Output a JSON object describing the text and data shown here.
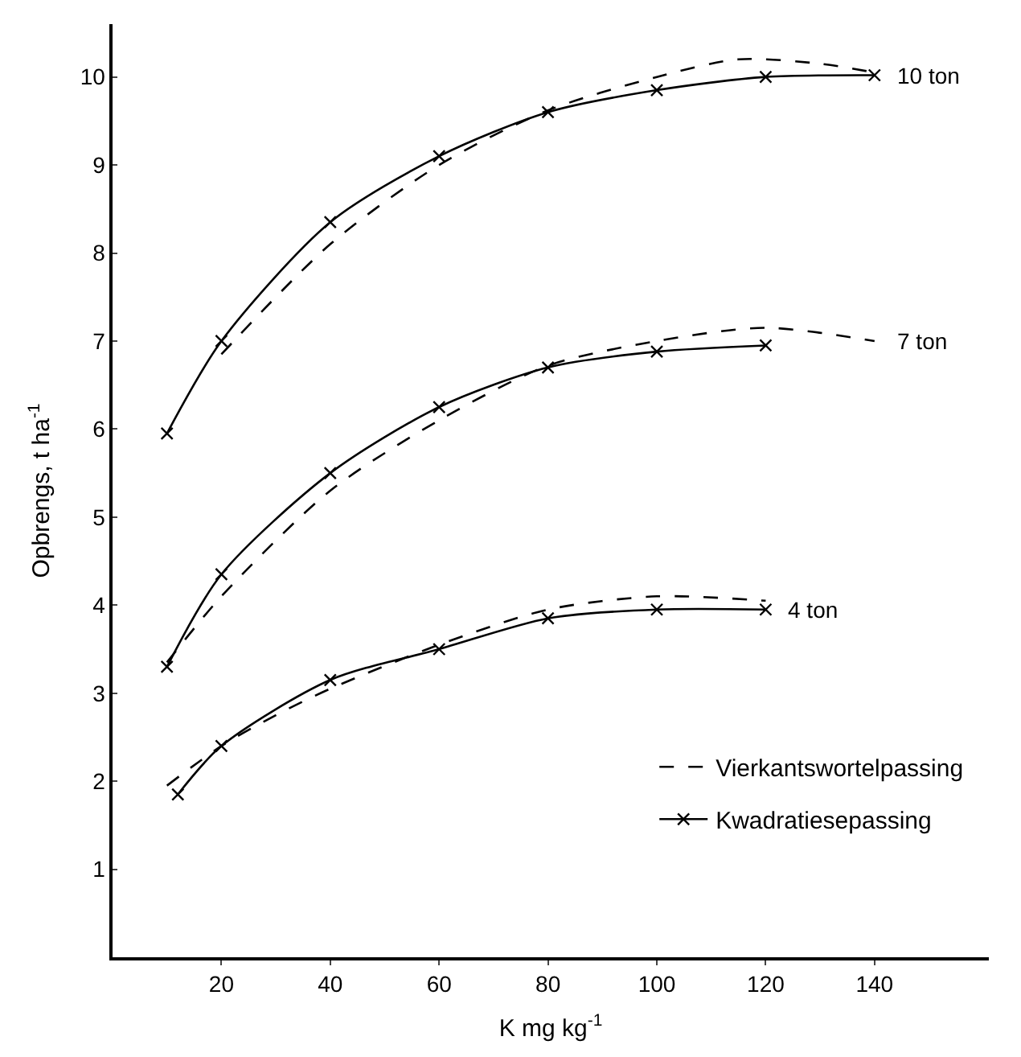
{
  "chart_data": {
    "type": "line",
    "xlabel": "K mg kg$^{-1}$",
    "ylabel": "Opbrengs, t ha$^{-1}$",
    "xlim": [
      0,
      161
    ],
    "ylim": [
      0,
      10.6
    ],
    "xticks": [
      20,
      40,
      60,
      80,
      100,
      120,
      140
    ],
    "yticks": [
      1,
      2,
      3,
      4,
      5,
      6,
      7,
      8,
      9,
      10
    ],
    "legend": "bottom right",
    "series": [
      {
        "name": "Vierkantswortelpassing",
        "color": "#000000",
        "line_style": "dashed",
        "marker": "none",
        "x": [
          20,
          40,
          60,
          80,
          100,
          115,
          130,
          140
        ],
        "values": [
          6.85,
          8.1,
          9.0,
          9.62,
          10.0,
          10.2,
          10.15,
          10.05
        ]
      },
      {
        "name": "Kwadratiesepassing",
        "color": "#000000",
        "line_style": "solid",
        "marker": "cross",
        "x": [
          10,
          20,
          40,
          60,
          80,
          100,
          120,
          140
        ],
        "values": [
          5.95,
          7.0,
          8.35,
          9.1,
          9.6,
          9.85,
          10.0,
          10.02
        ]
      },
      {
        "color": "#000000",
        "line_style": "dashed",
        "marker": "none",
        "x": [
          10,
          20,
          40,
          60,
          80,
          100,
          120,
          140
        ],
        "values": [
          3.35,
          4.1,
          5.3,
          6.1,
          6.72,
          7.0,
          7.15,
          7.0
        ]
      },
      {
        "color": "#000000",
        "line_style": "solid",
        "marker": "cross",
        "x": [
          10,
          20,
          40,
          60,
          80,
          100,
          120
        ],
        "values": [
          3.3,
          4.35,
          5.5,
          6.25,
          6.7,
          6.88,
          6.95
        ]
      },
      {
        "color": "#000000",
        "line_style": "dashed",
        "marker": "none",
        "x": [
          10,
          20,
          30,
          40,
          60,
          80,
          100,
          120
        ],
        "values": [
          1.95,
          2.4,
          2.75,
          3.05,
          3.55,
          3.95,
          4.1,
          4.05
        ]
      },
      {
        "color": "#000000",
        "line_style": "solid",
        "marker": "cross",
        "x": [
          12,
          20,
          40,
          60,
          80,
          100,
          120
        ],
        "values": [
          1.85,
          2.4,
          3.15,
          3.5,
          3.85,
          3.95,
          3.95
        ]
      }
    ],
    "annotations": [
      "10 ton",
      "7 ton",
      "4 ton"
    ]
  }
}
